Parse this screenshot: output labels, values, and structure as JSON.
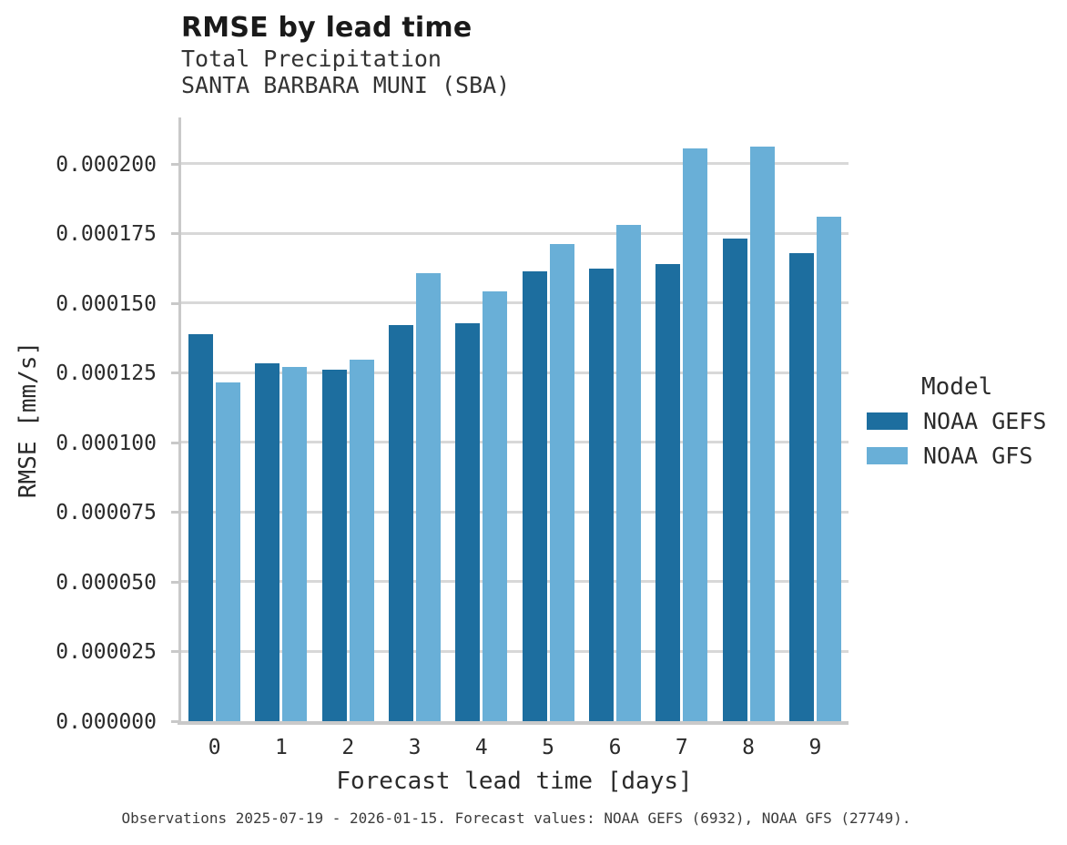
{
  "header": {
    "title": "RMSE by lead time",
    "subtitle_line1": "Total Precipitation",
    "subtitle_line2": "SANTA BARBARA MUNI (SBA)"
  },
  "chart_data": {
    "type": "bar",
    "title": "RMSE by lead time",
    "subtitle": [
      "Total Precipitation",
      "SANTA BARBARA MUNI (SBA)"
    ],
    "xlabel": "Forecast lead time [days]",
    "ylabel": "RMSE [mm/s]",
    "categories": [
      "0",
      "1",
      "2",
      "3",
      "4",
      "5",
      "6",
      "7",
      "8",
      "9"
    ],
    "series": [
      {
        "name": "NOAA GEFS",
        "color": "#1d6e9f",
        "values": [
          0.000139,
          0.0001283,
          0.0001262,
          0.0001422,
          0.0001428,
          0.0001615,
          0.0001625,
          0.0001641,
          0.0001732,
          0.0001678
        ]
      },
      {
        "name": "NOAA GFS",
        "color": "#69afd7",
        "values": [
          0.0001215,
          0.000127,
          0.0001297,
          0.0001608,
          0.0001543,
          0.0001712,
          0.0001782,
          0.0002056,
          0.0002061,
          0.000181
        ]
      }
    ],
    "ylim": [
      0,
      0.0002166
    ],
    "yticks": [
      {
        "value": 0.0,
        "label": "0.000000"
      },
      {
        "value": 2.5e-05,
        "label": "0.000025"
      },
      {
        "value": 5e-05,
        "label": "0.000050"
      },
      {
        "value": 7.5e-05,
        "label": "0.000075"
      },
      {
        "value": 0.0001,
        "label": "0.000100"
      },
      {
        "value": 0.000125,
        "label": "0.000125"
      },
      {
        "value": 0.00015,
        "label": "0.000150"
      },
      {
        "value": 0.000175,
        "label": "0.000175"
      },
      {
        "value": 0.0002,
        "label": "0.000200"
      }
    ],
    "grid": "horizontal",
    "legend_position": "right-outside"
  },
  "legend": {
    "title": "Model",
    "items": [
      {
        "label": "NOAA GEFS",
        "color": "#1d6e9f"
      },
      {
        "label": "NOAA GFS",
        "color": "#69afd7"
      }
    ]
  },
  "footer": {
    "text": "Observations 2025-07-19 - 2026-01-15. Forecast values: NOAA GEFS (6932), NOAA GFS (27749)."
  }
}
